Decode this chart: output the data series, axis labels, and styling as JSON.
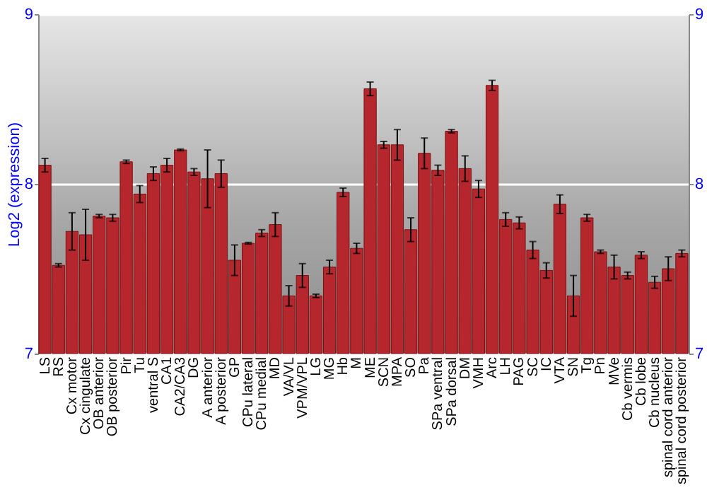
{
  "chart_data": {
    "type": "bar",
    "ylabel": "Log2 (expression)",
    "categories": [
      "LS",
      "RS",
      "Cx motor",
      "Cx cingulate",
      "OB anterior",
      "OB posterior",
      "Pir",
      "Tu",
      "ventral S",
      "CA1",
      "CA2/CA3",
      "DG",
      "A anterior",
      "A posterior",
      "GP",
      "CPu lateral",
      "CPu medial",
      "MD",
      "VA/VL",
      "VPM/VPL",
      "LG",
      "MG",
      "Hb",
      "M",
      "ME",
      "SCN",
      "MPA",
      "SO",
      "Pa",
      "SPa ventral",
      "SPa dorsal",
      "DM",
      "VMH",
      "Arc",
      "LH",
      "PAG",
      "SC",
      "IC",
      "VTA",
      "SN",
      "Tg",
      "Pn",
      "MVe",
      "Cb vermis",
      "Cb lobe",
      "Cb nucleus",
      "spinal cord anterior",
      "spinal cord posterior"
    ],
    "values": [
      8.11,
      7.52,
      7.72,
      7.7,
      7.81,
      7.8,
      8.13,
      7.94,
      8.06,
      8.11,
      8.2,
      8.07,
      8.03,
      8.06,
      7.55,
      7.65,
      7.71,
      7.76,
      7.34,
      7.46,
      7.34,
      7.51,
      7.95,
      7.62,
      8.56,
      8.23,
      8.23,
      7.73,
      8.18,
      8.08,
      8.31,
      8.09,
      7.97,
      8.58,
      7.79,
      7.77,
      7.61,
      7.49,
      7.88,
      7.34,
      7.8,
      7.6,
      7.51,
      7.46,
      7.58,
      7.42,
      7.5,
      7.59
    ],
    "errors": [
      0.04,
      0.01,
      0.11,
      0.15,
      0.01,
      0.02,
      0.01,
      0.05,
      0.04,
      0.04,
      0.005,
      0.02,
      0.17,
      0.08,
      0.09,
      0.005,
      0.02,
      0.07,
      0.06,
      0.07,
      0.01,
      0.04,
      0.025,
      0.03,
      0.04,
      0.02,
      0.09,
      0.07,
      0.09,
      0.03,
      0.01,
      0.075,
      0.05,
      0.03,
      0.04,
      0.035,
      0.05,
      0.045,
      0.055,
      0.12,
      0.02,
      0.01,
      0.07,
      0.02,
      0.02,
      0.035,
      0.07,
      0.02
    ],
    "color": "#b5272d",
    "ylim": [
      7,
      9
    ],
    "yticks": [
      7,
      8,
      9
    ],
    "y2lim": [
      7,
      9
    ],
    "y2ticks": [
      7,
      8,
      9
    ],
    "grid": "y"
  }
}
